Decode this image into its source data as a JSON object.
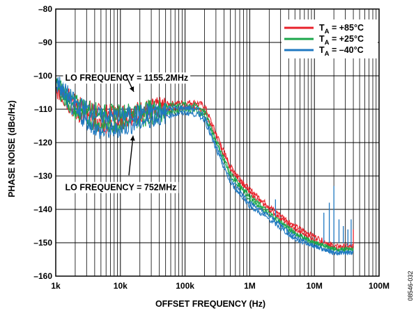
{
  "chart_data": {
    "type": "line",
    "xlabel": "OFFSET FREQUENCY (Hz)",
    "ylabel": "PHASE NOISE (dBc/Hz)",
    "x_scale": "log",
    "xlim": [
      1000,
      100000000
    ],
    "ylim": [
      -160,
      -80
    ],
    "x_ticks": [
      {
        "value": 1000,
        "label": "1k"
      },
      {
        "value": 10000,
        "label": "10k"
      },
      {
        "value": 100000,
        "label": "100k"
      },
      {
        "value": 1000000,
        "label": "1M"
      },
      {
        "value": 10000000,
        "label": "10M"
      },
      {
        "value": 100000000,
        "label": "100M"
      }
    ],
    "y_ticks": [
      {
        "value": -80,
        "label": "–80"
      },
      {
        "value": -90,
        "label": "–90"
      },
      {
        "value": -100,
        "label": "–100"
      },
      {
        "value": -110,
        "label": "–110"
      },
      {
        "value": -120,
        "label": "–120"
      },
      {
        "value": -130,
        "label": "–130"
      },
      {
        "value": -140,
        "label": "–140"
      },
      {
        "value": -150,
        "label": "–150"
      },
      {
        "value": -160,
        "label": "–160"
      }
    ],
    "grid": true,
    "legend": {
      "placement": "top-right",
      "entries": [
        {
          "name_main": "T",
          "name_sub": "A",
          "name_rest": " = +85°C",
          "color": "#e8202a"
        },
        {
          "name_main": "T",
          "name_sub": "A",
          "name_rest": " = +25°C",
          "color": "#1aa64a"
        },
        {
          "name_main": "T",
          "name_sub": "A",
          "name_rest": " = –40°C",
          "color": "#1f78c1"
        }
      ]
    },
    "annotations": [
      {
        "text": "LO FREQUENCY = 1155.2MHz",
        "x": 1400,
        "y": -101.5
      },
      {
        "text": "LO FREQUENCY = 752MHz",
        "x": 1400,
        "y": -134.3
      }
    ],
    "series": [
      {
        "color": "#e8202a",
        "x": [
          1000,
          2000,
          5000,
          10000,
          20000,
          50000,
          100000,
          150000,
          200000,
          300000,
          500000,
          1000000,
          2000000,
          5000000,
          10000000,
          20000000,
          40000000
        ],
        "values": [
          -103,
          -108,
          -111,
          -111,
          -110,
          -108.5,
          -108,
          -108,
          -109,
          -117,
          -127,
          -134,
          -139,
          -145,
          -148,
          -151,
          -151
        ]
      },
      {
        "color": "#e8202a",
        "x": [
          1000,
          2000,
          5000,
          10000,
          20000,
          50000,
          100000,
          150000,
          200000,
          300000,
          500000,
          1000000,
          2000000,
          5000000,
          10000000,
          20000000,
          40000000
        ],
        "values": [
          -104,
          -111,
          -115,
          -114,
          -112,
          -110,
          -109.5,
          -109.5,
          -110.5,
          -118,
          -128,
          -135,
          -140,
          -146,
          -149,
          -151.5,
          -151.5
        ]
      },
      {
        "color": "#1aa64a",
        "x": [
          1000,
          2000,
          5000,
          10000,
          20000,
          50000,
          100000,
          150000,
          200000,
          300000,
          500000,
          1000000,
          2000000,
          5000000,
          10000000,
          20000000,
          40000000
        ],
        "values": [
          -102,
          -108,
          -111,
          -111,
          -110,
          -109,
          -108.5,
          -109,
          -110.5,
          -119,
          -129,
          -136,
          -141,
          -147,
          -150,
          -152,
          -152
        ]
      },
      {
        "color": "#1aa64a",
        "x": [
          1000,
          2000,
          5000,
          10000,
          20000,
          50000,
          100000,
          150000,
          200000,
          300000,
          500000,
          1000000,
          2000000,
          5000000,
          10000000,
          20000000,
          40000000
        ],
        "values": [
          -103,
          -111,
          -115,
          -114.5,
          -113,
          -111,
          -110,
          -110.5,
          -112,
          -120,
          -130,
          -137,
          -141.5,
          -147.5,
          -150,
          -152,
          -152
        ]
      },
      {
        "color": "#1f78c1",
        "x": [
          1000,
          2000,
          5000,
          10000,
          20000,
          50000,
          100000,
          150000,
          200000,
          300000,
          500000,
          1000000,
          2000000,
          5000000,
          10000000,
          20000000,
          40000000
        ],
        "values": [
          -101,
          -108,
          -112,
          -112,
          -111,
          -110,
          -109.5,
          -110,
          -112,
          -121,
          -131,
          -138,
          -142,
          -148,
          -151,
          -153,
          -153
        ]
      },
      {
        "color": "#1f78c1",
        "x": [
          1000,
          2000,
          5000,
          10000,
          20000,
          50000,
          100000,
          150000,
          200000,
          300000,
          500000,
          1000000,
          2000000,
          5000000,
          10000000,
          20000000,
          40000000
        ],
        "values": [
          -102,
          -111,
          -117,
          -116,
          -114,
          -112,
          -111,
          -111.5,
          -113,
          -122,
          -132,
          -139,
          -143,
          -149,
          -151,
          -153,
          -153
        ]
      }
    ],
    "spurs": [
      {
        "x": 2500000,
        "values": [
          -142,
          -137
        ]
      },
      {
        "x": 14000000,
        "values": [
          -150,
          -141
        ]
      },
      {
        "x": 17000000,
        "values": [
          -150,
          -138
        ]
      },
      {
        "x": 20000000,
        "values": [
          -150,
          -133
        ]
      },
      {
        "x": 24000000,
        "values": [
          -150,
          -143
        ]
      },
      {
        "x": 28000000,
        "values": [
          -150,
          -145
        ]
      },
      {
        "x": 33000000,
        "values": [
          -151,
          -146
        ]
      },
      {
        "x": 37000000,
        "values": [
          -151,
          -143
        ]
      }
    ]
  },
  "figure_id": "08546-032"
}
